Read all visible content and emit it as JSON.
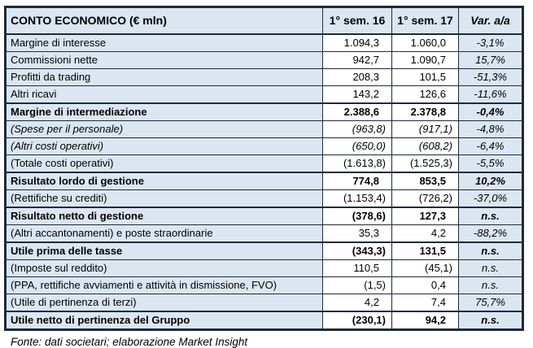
{
  "chart_data": {
    "type": "table",
    "title": "CONTO ECONOMICO (€ mln)",
    "header": {
      "label": "CONTO ECONOMICO (€ mln)",
      "col_sem16": "1° sem. 16",
      "col_sem17": "1° sem. 17",
      "col_var": "Var. a/a"
    },
    "rows": [
      {
        "label": "Margine di interesse",
        "sem16": "1.094,3",
        "sem17": "1.060,0",
        "var_aa": "-3,1%",
        "style": "regular"
      },
      {
        "label": "Commissioni nette",
        "sem16": "942,7",
        "sem17": "1.090,7",
        "var_aa": "15,7%",
        "style": "regular"
      },
      {
        "label": "Profitti da trading",
        "sem16": "208,3",
        "sem17": "101,5",
        "var_aa": "-51,3%",
        "style": "regular"
      },
      {
        "label": "Altri ricavi",
        "sem16": "143,2",
        "sem17": "126,6",
        "var_aa": "-11,6%",
        "style": "regular"
      },
      {
        "label": "Margine di intermediazione",
        "sem16": "2.388,6",
        "sem17": "2.378,8",
        "var_aa": "-0,4%",
        "style": "bold"
      },
      {
        "label": "(Spese per il personale)",
        "sem16": "(963,8)",
        "sem17": "(917,1)",
        "var_aa": "-4,8%",
        "style": "italic"
      },
      {
        "label": "(Altri costi operativi)",
        "sem16": "(650,0)",
        "sem17": "(608,2)",
        "var_aa": "-6,4%",
        "style": "italic"
      },
      {
        "label": "(Totale costi operativi)",
        "sem16": "(1.613,8)",
        "sem17": "(1.525,3)",
        "var_aa": "-5,5%",
        "style": "regular"
      },
      {
        "label": "Risultato lordo di gestione",
        "sem16": "774,8",
        "sem17": "853,5",
        "var_aa": "10,2%",
        "style": "bold"
      },
      {
        "label": "(Rettifiche su crediti)",
        "sem16": "(1.153,4)",
        "sem17": "(726,2)",
        "var_aa": "-37,0%",
        "style": "regular"
      },
      {
        "label": "Risultato netto di gestione",
        "sem16": "(378,6)",
        "sem17": "127,3",
        "var_aa": "n.s.",
        "style": "bold"
      },
      {
        "label": "(Altri accantonamenti) e poste straordinarie",
        "sem16": "35,3",
        "sem17": "4,2",
        "var_aa": "-88,2%",
        "style": "regular"
      },
      {
        "label": "Utile prima delle tasse",
        "sem16": "(343,3)",
        "sem17": "131,5",
        "var_aa": "n.s.",
        "style": "bold"
      },
      {
        "label": "(Imposte sul reddito)",
        "sem16": "110,5",
        "sem17": "(45,1)",
        "var_aa": "n.s.",
        "style": "regular"
      },
      {
        "label": "(PPA, rettifiche avviamenti e attività in dismissione, FVO)",
        "sem16": "(1,5)",
        "sem17": "0,4",
        "var_aa": "n.s.",
        "style": "regular"
      },
      {
        "label": "(Utile di pertinenza di terzi)",
        "sem16": "4,2",
        "sem17": "7,4",
        "var_aa": "75,7%",
        "style": "regular"
      },
      {
        "label": "Utile netto di pertinenza del Gruppo",
        "sem16": "(230,1)",
        "sem17": "94,2",
        "var_aa": "n.s.",
        "style": "bold"
      }
    ],
    "source_note": "Fonte: dati societari; elaborazione Market Insight"
  },
  "colors": {
    "header_bg": "#dce6f1",
    "label_bg": "#dce6f1",
    "number_bg": "#ffffff",
    "var_bg": "#dce6f1",
    "border": "#1c2b3a",
    "text": "#000000"
  }
}
